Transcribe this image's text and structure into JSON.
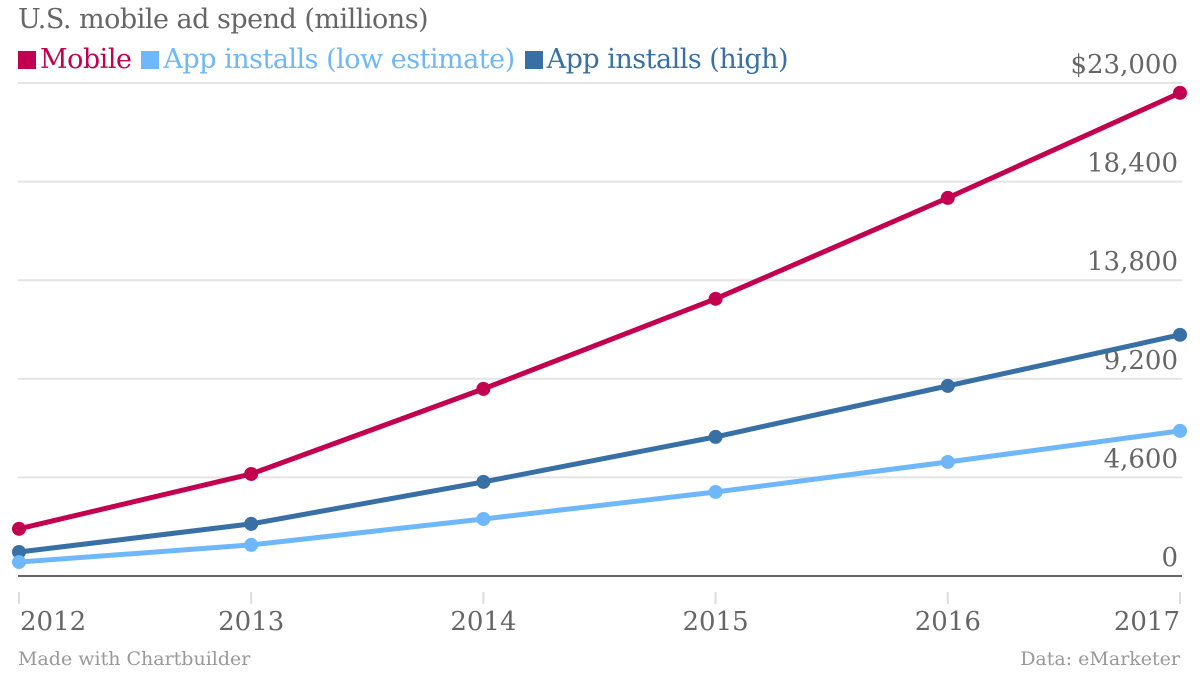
{
  "chart_data": {
    "type": "line",
    "title": "U.S. mobile ad spend (millions)",
    "xlabel": "",
    "ylabel": "",
    "x": [
      "2012",
      "2013",
      "2014",
      "2015",
      "2016",
      "2017"
    ],
    "ylim": [
      0,
      23000
    ],
    "yticks": [
      0,
      4600,
      9200,
      13800,
      18400,
      23000
    ],
    "ytick_labels": [
      "0",
      "4,600",
      "9,200",
      "13,800",
      "18,400",
      "$23,000"
    ],
    "grid": true,
    "legend_position": "top-left",
    "series": [
      {
        "name": "Mobile",
        "color": "#c2004f",
        "values": [
          2200,
          4760,
          8730,
          12930,
          17640,
          22540
        ]
      },
      {
        "name": "App installs (low estimate)",
        "color": "#6fb7fb",
        "values": [
          650,
          1450,
          2660,
          3920,
          5320,
          6770
        ]
      },
      {
        "name": "App installs (high)",
        "color": "#3870a6",
        "values": [
          1120,
          2430,
          4390,
          6490,
          8870,
          11250
        ]
      }
    ]
  },
  "footer": {
    "left": "Made with Chartbuilder",
    "right": "Data: eMarketer"
  }
}
